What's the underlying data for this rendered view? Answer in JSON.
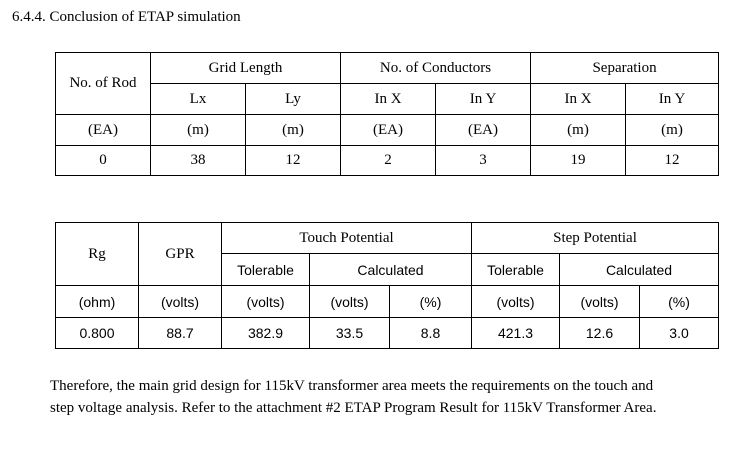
{
  "heading": "6.4.4. Conclusion of ETAP simulation",
  "table1": {
    "no_of_rod": "No. of Rod",
    "grid_length": "Grid Length",
    "no_of_conductors": "No. of Conductors",
    "separation": "Separation",
    "sub": [
      "Lx",
      "Ly",
      "In X",
      "In Y",
      "In X",
      "In Y"
    ],
    "units": [
      "(EA)",
      "(m)",
      "(m)",
      "(EA)",
      "(EA)",
      "(m)",
      "(m)"
    ],
    "values": [
      "0",
      "38",
      "12",
      "2",
      "3",
      "19",
      "12"
    ]
  },
  "table2": {
    "rg": "Rg",
    "gpr": "GPR",
    "touch_potential": "Touch Potential",
    "step_potential": "Step Potential",
    "touch_tolerable": "Tolerable",
    "touch_calculated": "Calculated",
    "step_tolerable": "Tolerable",
    "step_calculated": "Calculated",
    "units": [
      "(ohm)",
      "(volts)",
      "(volts)",
      "(volts)",
      "(%)",
      "(volts)",
      "(volts)",
      "(%)"
    ],
    "values": [
      "0.800",
      "88.7",
      "382.9",
      "33.5",
      "8.8",
      "421.3",
      "12.6",
      "3.0"
    ]
  },
  "paragraph": {
    "line1": "Therefore, the main grid design for 115kV transformer area meets the requirements on the touch and",
    "line2": "step voltage analysis. Refer to the attachment #2 ETAP Program Result for 115kV Transformer Area."
  }
}
